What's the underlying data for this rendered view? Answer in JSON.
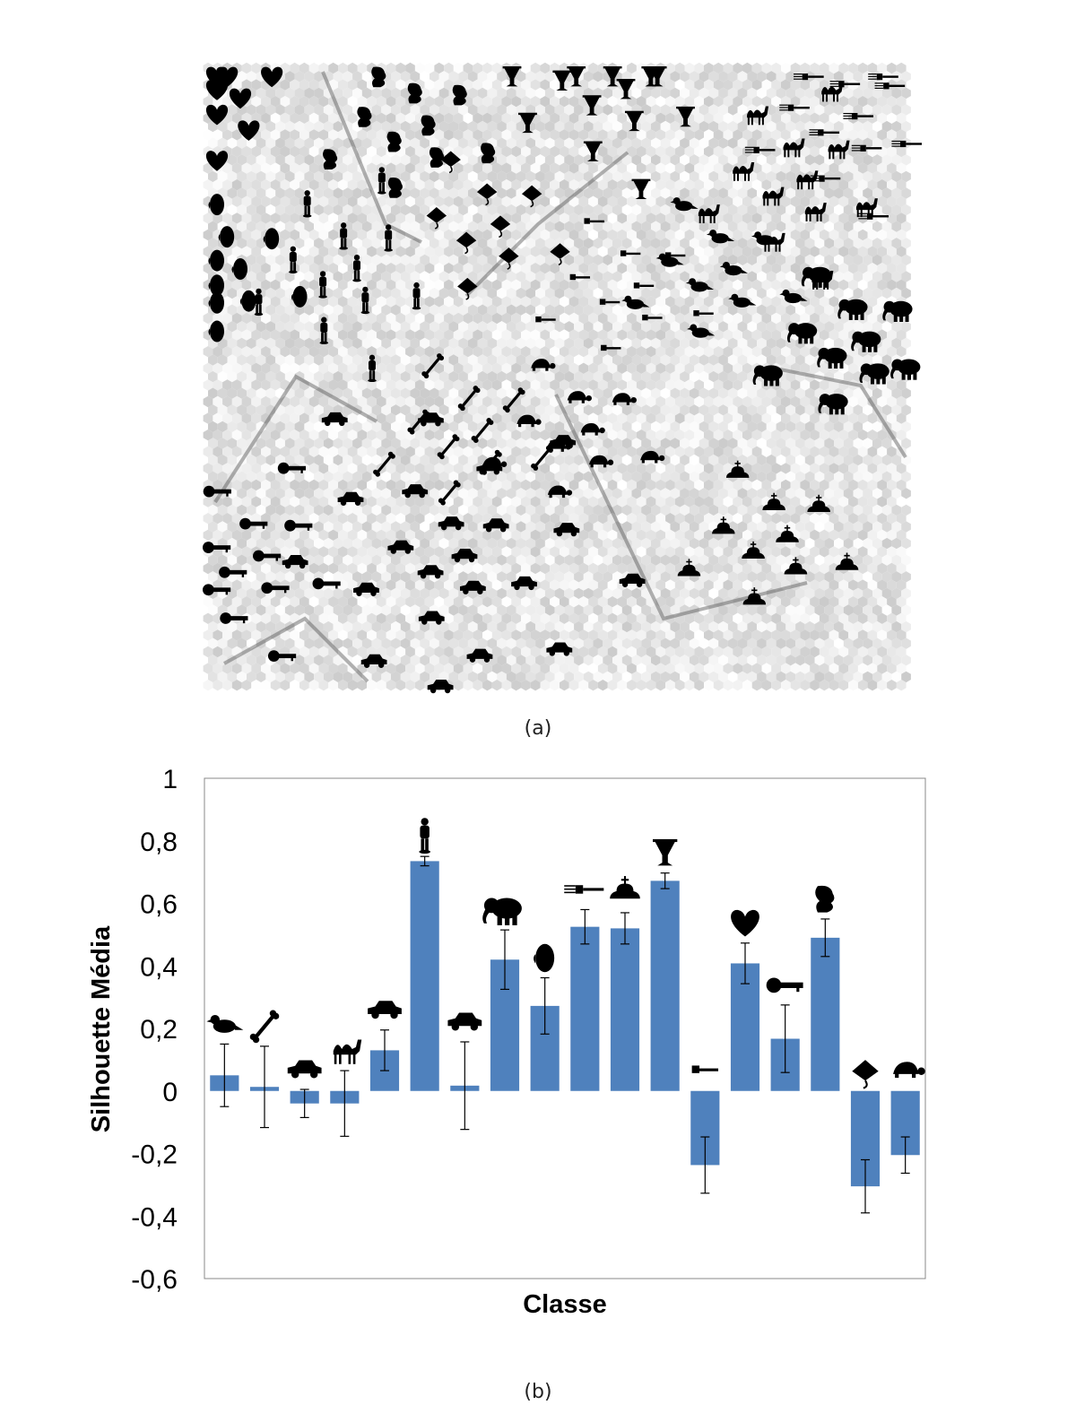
{
  "figure": {
    "caption_a": "(a)",
    "caption_b": "(b)"
  },
  "som_map": {
    "palette": {
      "light": "#f7f7f7",
      "dark": "#222222",
      "icon": "#000000"
    },
    "icons": [
      {
        "name": "heart-icon",
        "count": 8
      },
      {
        "name": "head-icon",
        "count": 10
      },
      {
        "name": "person-icon",
        "count": 12
      },
      {
        "name": "bird-icon",
        "count": 10
      },
      {
        "name": "bone-icon",
        "count": 10
      },
      {
        "name": "car-icon",
        "count": 22
      },
      {
        "name": "camel-icon",
        "count": 12
      },
      {
        "name": "elephant-icon",
        "count": 10
      },
      {
        "name": "fork-icon",
        "count": 12
      },
      {
        "name": "glass-icon",
        "count": 13
      },
      {
        "name": "hammer-icon",
        "count": 10
      },
      {
        "name": "key-icon",
        "count": 12
      },
      {
        "name": "ray-icon",
        "count": 9
      },
      {
        "name": "turtle-icon",
        "count": 10
      },
      {
        "name": "cross-hat-icon",
        "count": 10
      },
      {
        "name": "squiggle-icon",
        "count": 10
      }
    ]
  },
  "chart_data": {
    "type": "bar",
    "title": "",
    "xlabel": "Classe",
    "ylabel": "Silhouette Média",
    "ylim": [
      -0.6,
      1
    ],
    "yticks": [
      "1",
      "0,8",
      "0,6",
      "0,4",
      "0,2",
      "0",
      "-0,2",
      "-0,4",
      "-0,6"
    ],
    "ytick_values": [
      1,
      0.8,
      0.6,
      0.4,
      0.2,
      0,
      -0.2,
      -0.4,
      -0.6
    ],
    "grid": false,
    "bar_color": "#4f81bd",
    "categories": [
      "bird-icon",
      "bone-icon",
      "car-icon",
      "camel-icon",
      "car-icon",
      "person-icon",
      "car-icon",
      "elephant-icon",
      "head-icon",
      "fork-icon",
      "cross-hat-icon",
      "glass-icon",
      "hammer-icon",
      "heart-icon",
      "key-icon",
      "squiggle-icon",
      "ray-icon",
      "turtle-icon"
    ],
    "values": [
      0.05,
      0.013,
      -0.04,
      -0.04,
      0.13,
      0.735,
      0.017,
      0.42,
      0.272,
      0.525,
      0.52,
      0.672,
      -0.237,
      0.408,
      0.167,
      0.49,
      -0.305,
      -0.205
    ],
    "errors": [
      0.1,
      0.13,
      0.045,
      0.105,
      0.065,
      0.015,
      0.14,
      0.095,
      0.09,
      0.055,
      0.05,
      0.025,
      0.09,
      0.065,
      0.108,
      0.06,
      0.085,
      0.058
    ]
  }
}
